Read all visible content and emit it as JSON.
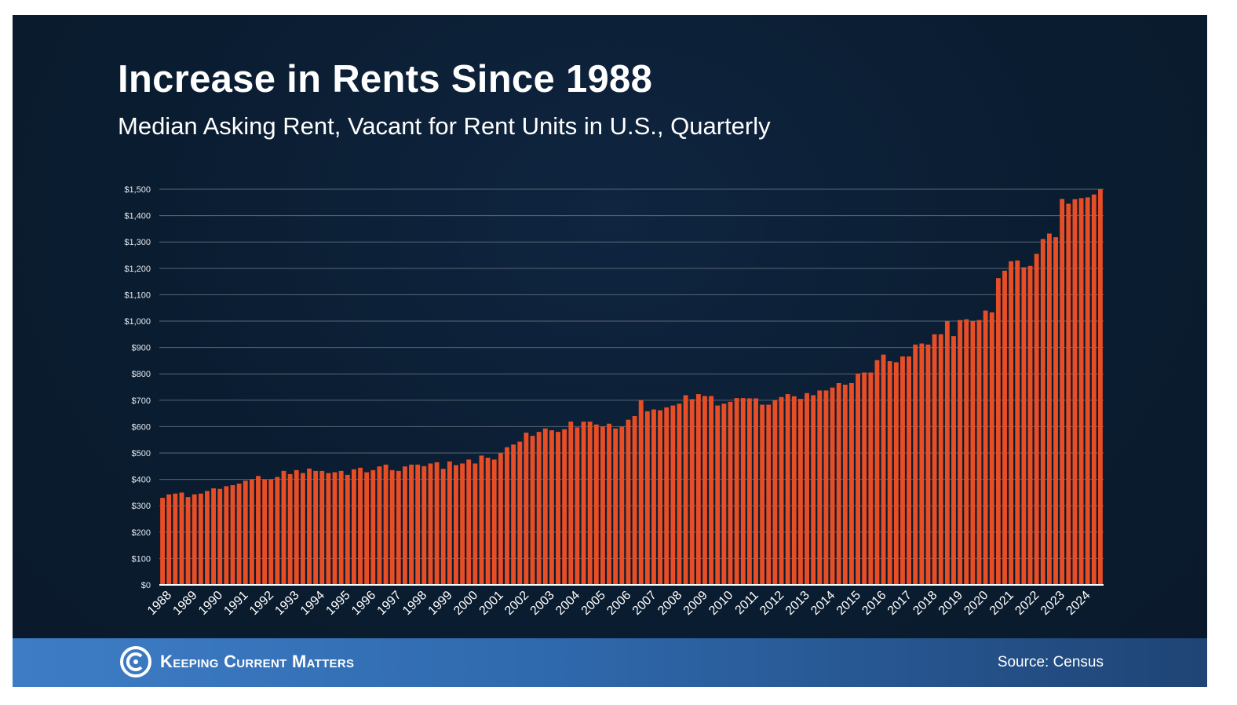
{
  "header": {
    "title": "Increase in Rents Since 1988",
    "subtitle": "Median Asking Rent, Vacant for Rent Units in U.S., Quarterly"
  },
  "footer": {
    "brand": "Keeping Current Matters",
    "source": "Source: Census"
  },
  "colors": {
    "bar": "#e84e26",
    "background": "#0b1d31",
    "footer": "#3e7dc6",
    "grid": "#5a6675"
  },
  "chart_data": {
    "type": "bar",
    "title": "Increase in Rents Since 1988",
    "subtitle": "Median Asking Rent, Vacant for Rent Units in U.S., Quarterly",
    "xlabel": "",
    "ylabel": "",
    "ylim": [
      0,
      1500
    ],
    "yticks": [
      "$0",
      "$100",
      "$200",
      "$300",
      "$400",
      "$500",
      "$600",
      "$700",
      "$800",
      "$900",
      "$1,000",
      "$1,100",
      "$1,200",
      "$1,300",
      "$1,400",
      "$1,500"
    ],
    "grid": true,
    "x_tick_labels": [
      "1988",
      "1989",
      "1990",
      "1991",
      "1992",
      "1993",
      "1994",
      "1995",
      "1996",
      "1997",
      "1998",
      "1999",
      "2000",
      "2001",
      "2002",
      "2003",
      "2004",
      "2005",
      "2006",
      "2007",
      "2008",
      "2009",
      "2010",
      "2011",
      "2012",
      "2013",
      "2014",
      "2015",
      "2016",
      "2017",
      "2018",
      "2019",
      "2020",
      "2021",
      "2022",
      "2023",
      "2024"
    ],
    "values": [
      330,
      343,
      346,
      350,
      333,
      343,
      346,
      356,
      366,
      364,
      374,
      378,
      384,
      395,
      400,
      413,
      399,
      400,
      409,
      432,
      420,
      435,
      424,
      441,
      432,
      432,
      424,
      427,
      432,
      417,
      438,
      444,
      427,
      435,
      449,
      456,
      435,
      432,
      449,
      456,
      456,
      450,
      460,
      465,
      440,
      468,
      454,
      460,
      475,
      460,
      490,
      482,
      475,
      500,
      522,
      532,
      543,
      577,
      565,
      580,
      593,
      586,
      580,
      590,
      619,
      597,
      619,
      619,
      608,
      600,
      611,
      593,
      600,
      626,
      640,
      700,
      658,
      665,
      662,
      673,
      680,
      687,
      719,
      704,
      723,
      716,
      716,
      680,
      687,
      694,
      708,
      708,
      707,
      707,
      683,
      683,
      700,
      712,
      723,
      715,
      705,
      727,
      719,
      737,
      737,
      748,
      765,
      759,
      765,
      801,
      805,
      805,
      852,
      873,
      848,
      844,
      866,
      866,
      911,
      915,
      911,
      950,
      950,
      1000,
      943,
      1004,
      1007,
      1000,
      1004,
      1040,
      1033,
      1163,
      1191,
      1227,
      1230,
      1204,
      1209,
      1255,
      1311,
      1332,
      1318,
      1463,
      1445,
      1462,
      1466,
      1469,
      1480,
      1500
    ]
  }
}
